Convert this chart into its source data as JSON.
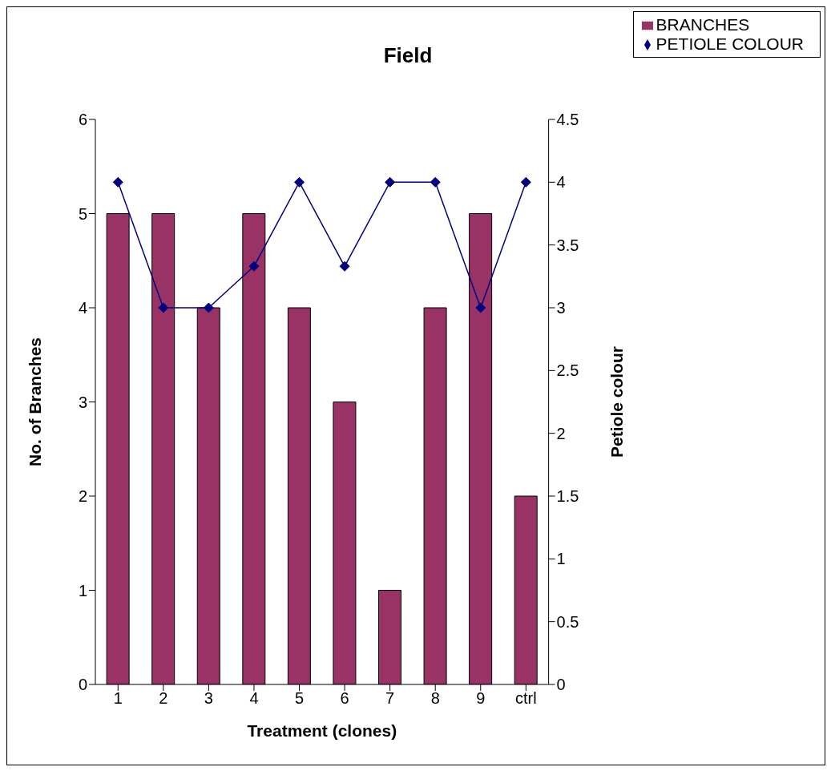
{
  "chart_data": {
    "type": "bar",
    "title": "Field",
    "xlabel": "Treatment (clones)",
    "ylabel": "No. of Branches",
    "y2label": "Petiole colour",
    "categories": [
      "1",
      "2",
      "3",
      "4",
      "5",
      "6",
      "7",
      "8",
      "9",
      "ctrl"
    ],
    "series": [
      {
        "name": "BRANCHES",
        "color": "#993366",
        "values": [
          5,
          5,
          4,
          5,
          4,
          3,
          1,
          4,
          5,
          2
        ]
      },
      {
        "name": "PETIOLE COLOUR",
        "type": "line",
        "axis": "y2",
        "color": "#000080",
        "values": [
          4,
          3,
          3,
          3.33,
          4,
          3.33,
          4,
          4,
          3,
          4
        ]
      }
    ],
    "ylim": [
      0,
      6
    ],
    "yticks": [
      0,
      1,
      2,
      3,
      4,
      5,
      6
    ],
    "y2lim": [
      0,
      4.5
    ],
    "y2ticks": [
      0,
      0.5,
      1,
      1.5,
      2,
      2.5,
      3,
      3.5,
      4,
      4.5
    ],
    "grid": false,
    "legend": "top right",
    "marker": "diamond",
    "line_style": "solid"
  }
}
